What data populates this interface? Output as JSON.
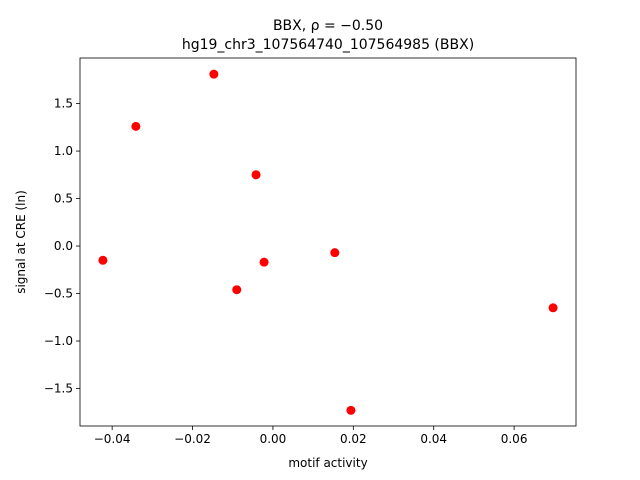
{
  "chart_data": {
    "type": "scatter",
    "title": "BBX, ρ = −0.50",
    "subtitle": "hg19_chr3_107564740_107564985 (BBX)",
    "x_label": "motif activity",
    "y_label": "signal at CRE (ln)",
    "color": "#ff0000",
    "x": [
      -0.0147,
      -0.0341,
      -0.0042,
      -0.0423,
      -0.009,
      -0.0022,
      0.0154,
      0.0697,
      0.0194
    ],
    "values": [
      1.81,
      1.26,
      0.75,
      -0.15,
      -0.46,
      -0.17,
      -0.07,
      -0.65,
      -1.73
    ],
    "xlim": [
      -0.048,
      0.0754
    ],
    "ylim": [
      -1.895,
      1.98
    ],
    "xticks": [
      {
        "value": -0.04,
        "label": "−0.04"
      },
      {
        "value": -0.02,
        "label": "−0.02"
      },
      {
        "value": 0,
        "label": "0.00"
      },
      0.02,
      0.04,
      0.06
    ],
    "yticks": [
      {
        "value": -1.5,
        "label": "−1.5"
      },
      {
        "value": -1,
        "label": "−1.0"
      },
      {
        "value": -0.5,
        "label": "−0.5"
      },
      {
        "value": 0,
        "label": "0.0"
      },
      0.5,
      {
        "value": 1,
        "label": "1.0"
      },
      1.5
    ],
    "grid": false
  }
}
